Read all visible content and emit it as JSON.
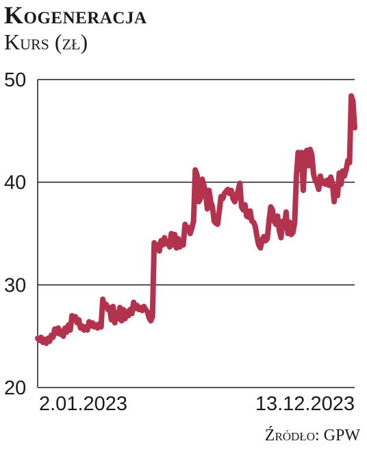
{
  "header": {
    "title": "Kogeneracja",
    "subtitle": "Kurs (zł)"
  },
  "source": "Źródło: GPW",
  "colors": {
    "line": "#b3334f",
    "grid": "#1a1a1a",
    "axis": "#1a1a1a"
  },
  "chart_data": {
    "type": "line",
    "title": "Kogeneracja",
    "ylabel": "Kurs (zł)",
    "xlabel": "",
    "ylim": [
      20,
      50
    ],
    "yticks": [
      20,
      30,
      40,
      50
    ],
    "x_tick_labels": [
      "2.01.2023",
      "13.12.2023"
    ],
    "grid": "horizontal",
    "series": [
      {
        "values": [
          24.8,
          24.6,
          24.9,
          24.4,
          24.7,
          24.3,
          24.8,
          24.5,
          25.1,
          24.9,
          25.7,
          25.3,
          25.8,
          25.2,
          25.5,
          25.0,
          25.8,
          25.4,
          26.1,
          25.6,
          27.0,
          26.6,
          26.9,
          26.3,
          26.6,
          25.8,
          26.0,
          25.6,
          25.9,
          25.6,
          26.4,
          26.0,
          26.3,
          25.9,
          26.1,
          25.8,
          26.2,
          25.9,
          28.6,
          27.9,
          28.1,
          27.6,
          27.8,
          26.6,
          27.9,
          26.3,
          27.3,
          26.7,
          27.8,
          26.5,
          27.6,
          26.7,
          27.4,
          27.0,
          27.6,
          27.2,
          28.3,
          27.7,
          28.0,
          27.6,
          27.8,
          27.5,
          27.9,
          27.6,
          27.4,
          26.8,
          26.5,
          26.9,
          34.1,
          33.5,
          33.9,
          33.3,
          34.3,
          33.9,
          34.6,
          34.0,
          34.2,
          33.7,
          35.0,
          33.9,
          34.9,
          33.6,
          34.5,
          33.7,
          34.3,
          33.9,
          35.9,
          35.3,
          35.6,
          35.0,
          35.5,
          36.2,
          41.2,
          40.7,
          38.1,
          38.4,
          40.3,
          39.7,
          39.0,
          37.4,
          39.2,
          38.1,
          37.6,
          36.2,
          36.0,
          35.9,
          37.2,
          38.6,
          38.4,
          38.9,
          39.1,
          39.3,
          38.9,
          39.2,
          38.4,
          38.1,
          38.6,
          39.2,
          39.9,
          37.6,
          37.3,
          37.8,
          36.7,
          36.6,
          37.2,
          36.2,
          36.1,
          35.7,
          34.7,
          33.9,
          33.6,
          34.4,
          34.7,
          34.3,
          34.5,
          36.2,
          37.6,
          37.3,
          36.2,
          35.9,
          36.7,
          35.3,
          34.6,
          36.2,
          35.6,
          37.1,
          35.0,
          36.1,
          34.9,
          35.1,
          36.1,
          40.6,
          42.9,
          41.3,
          42.9,
          39.2,
          42.6,
          43.1,
          41.6,
          43.2,
          42.7,
          40.8,
          40.2,
          39.9,
          39.3,
          40.6,
          39.9,
          40.1,
          39.8,
          40.2,
          39.7,
          40.5,
          39.9,
          38.1,
          39.6,
          38.7,
          40.9,
          39.8,
          41.1,
          40.6,
          41.2,
          42.1,
          41.9,
          48.4,
          47.9,
          45.3
        ]
      }
    ]
  }
}
